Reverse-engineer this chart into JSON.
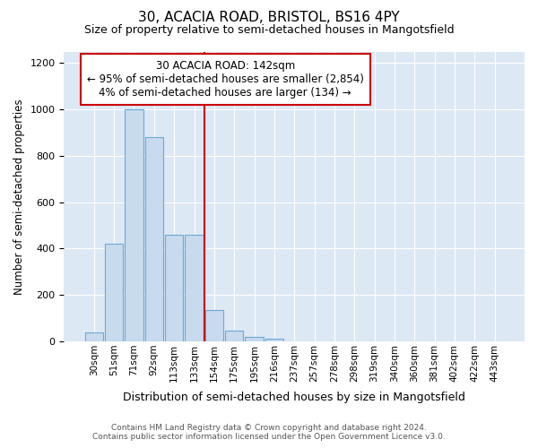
{
  "title_line1": "30, ACACIA ROAD, BRISTOL, BS16 4PY",
  "title_line2": "Size of property relative to semi-detached houses in Mangotsfield",
  "xlabel": "Distribution of semi-detached houses by size in Mangotsfield",
  "ylabel": "Number of semi-detached properties",
  "footer_line1": "Contains HM Land Registry data © Crown copyright and database right 2024.",
  "footer_line2": "Contains public sector information licensed under the Open Government Licence v3.0.",
  "annotation_line1": "30 ACACIA ROAD: 142sqm",
  "annotation_line2": "← 95% of semi-detached houses are smaller (2,854)",
  "annotation_line3": "4% of semi-detached houses are larger (134) →",
  "bar_labels": [
    "30sqm",
    "51sqm",
    "71sqm",
    "92sqm",
    "113sqm",
    "133sqm",
    "154sqm",
    "175sqm",
    "195sqm",
    "216sqm",
    "237sqm",
    "257sqm",
    "278sqm",
    "298sqm",
    "319sqm",
    "340sqm",
    "360sqm",
    "381sqm",
    "402sqm",
    "422sqm",
    "443sqm"
  ],
  "bar_values": [
    40,
    420,
    1000,
    880,
    460,
    460,
    135,
    45,
    20,
    10,
    0,
    0,
    0,
    0,
    0,
    0,
    0,
    0,
    0,
    0,
    0
  ],
  "bar_color": "#c8daee",
  "bar_edge_color": "#6aaad4",
  "property_line_x": 6.0,
  "property_line_color": "#cc0000",
  "ylim": [
    0,
    1250
  ],
  "yticks": [
    0,
    200,
    400,
    600,
    800,
    1000,
    1200
  ],
  "fig_bg_color": "#ffffff",
  "plot_bg_color": "#dde8f5",
  "annotation_box_color": "#ffffff",
  "annotation_box_edge": "#cc0000"
}
